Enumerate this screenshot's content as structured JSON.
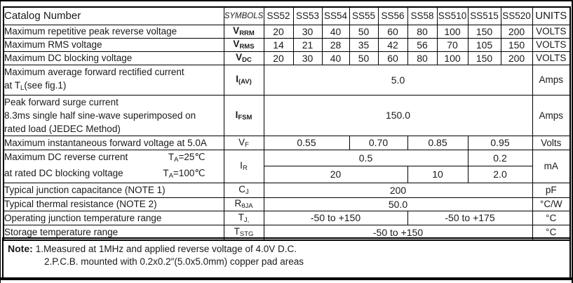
{
  "table": {
    "header": {
      "catalog": "Catalog  Number",
      "symbols": "SYMBOLS",
      "parts": [
        "SS52",
        "SS53",
        "SS54",
        "SS55",
        "SS56",
        "SS58",
        "SS510",
        "SS515",
        "SS520"
      ],
      "units": "UNITS"
    },
    "rows": {
      "vrrm": {
        "param": "Maximum repetitive peak reverse voltage",
        "sym": "V",
        "sub": "RRM",
        "values": [
          "20",
          "30",
          "40",
          "50",
          "60",
          "80",
          "100",
          "150",
          "200"
        ],
        "unit": "VOLTS"
      },
      "vrms": {
        "param": "Maximum RMS voltage",
        "sym": "V",
        "sub": "RMS",
        "values": [
          "14",
          "21",
          "28",
          "35",
          "42",
          "56",
          "70",
          "105",
          "150"
        ],
        "unit": "VOLTS"
      },
      "vdc": {
        "param": "Maximum DC blocking voltage",
        "sym": "V",
        "sub": "DC",
        "values": [
          "20",
          "30",
          "40",
          "50",
          "60",
          "80",
          "100",
          "150",
          "200"
        ],
        "unit": "VOLTS"
      },
      "iav": {
        "param_line1": "Maximum average forward rectified current",
        "param_line2_pre": "at T",
        "param_line2_sub": "L",
        "param_line2_post": "(see fig.1)",
        "sym": "I",
        "sub": "(AV)",
        "value": "5.0",
        "unit": "Amps"
      },
      "ifsm": {
        "param_line1": "Peak forward surge current",
        "param_line2": "8.3ms single half sine-wave superimposed on",
        "param_line3": "rated load (JEDEC Method)",
        "sym": "I",
        "sub": "FSM",
        "value": "150.0",
        "unit": "Amps"
      },
      "vf": {
        "param": "Maximum instantaneous forward voltage at 5.0A",
        "sym": "V",
        "sub": "F",
        "values": [
          "0.55",
          "0.70",
          "0.85",
          "0.95"
        ],
        "unit": "Volts"
      },
      "ir": {
        "param_line1": "Maximum DC reverse current",
        "cond1_pre": "T",
        "cond1_sub": "A",
        "cond1_post": "=25℃",
        "param_line2": "at rated DC blocking voltage",
        "cond2_pre": "T",
        "cond2_sub": "A",
        "cond2_post": "=100℃",
        "sym": "I",
        "sub": "R",
        "row1_values": [
          "0.5",
          "0.2"
        ],
        "row2_values": [
          "20",
          "10",
          "2.0"
        ],
        "unit": "mA"
      },
      "cj": {
        "param": "Typical junction capacitance (NOTE 1)",
        "sym": "C",
        "sub": "J",
        "value": "200",
        "unit": "pF"
      },
      "rthja": {
        "param": "Typical thermal resistance (NOTE 2)",
        "sym": "R",
        "sub": "θJA",
        "value": "50.0",
        "unit": "°C/W"
      },
      "tj": {
        "param": "Operating junction temperature range",
        "sym": "T",
        "sub": "J,",
        "values": [
          "-50 to +150",
          "-50 to +175"
        ],
        "unit": "°C"
      },
      "tstg": {
        "param": "Storage temperature range",
        "sym": "T",
        "sub": "STG",
        "value": "-50 to +150",
        "unit": "°C"
      }
    }
  },
  "note": {
    "label": "Note:",
    "line1": "1.Measured at 1MHz and applied reverse voltage of 4.0V D.C.",
    "line2": "2.P.C.B. mounted with 0.2x0.2″(5.0x5.0mm) copper pad areas"
  }
}
